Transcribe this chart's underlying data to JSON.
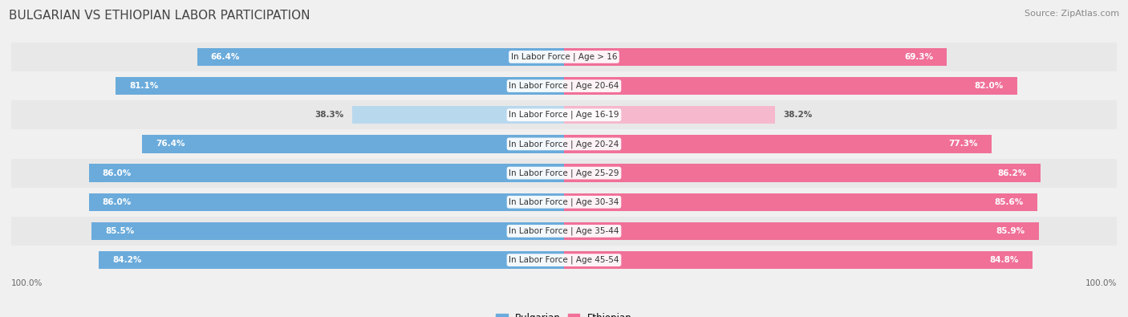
{
  "title": "BULGARIAN VS ETHIOPIAN LABOR PARTICIPATION",
  "source": "Source: ZipAtlas.com",
  "categories": [
    "In Labor Force | Age > 16",
    "In Labor Force | Age 20-64",
    "In Labor Force | Age 16-19",
    "In Labor Force | Age 20-24",
    "In Labor Force | Age 25-29",
    "In Labor Force | Age 30-34",
    "In Labor Force | Age 35-44",
    "In Labor Force | Age 45-54"
  ],
  "bulgarian_values": [
    66.4,
    81.1,
    38.3,
    76.4,
    86.0,
    86.0,
    85.5,
    84.2
  ],
  "ethiopian_values": [
    69.3,
    82.0,
    38.2,
    77.3,
    86.2,
    85.6,
    85.9,
    84.8
  ],
  "bulgarian_color": "#6aabdb",
  "bulgarian_light_color": "#b8d8ee",
  "ethiopian_color": "#f07098",
  "ethiopian_light_color": "#f5b8cc",
  "bg_color": "#f0f0f0",
  "row_bg_even": "#e8e8e8",
  "row_bg_odd": "#f0f0f0",
  "max_value": 100.0,
  "title_fontsize": 11,
  "source_fontsize": 8,
  "label_fontsize": 7.5,
  "value_fontsize": 7.5,
  "legend_fontsize": 8.5,
  "bar_height": 0.62
}
